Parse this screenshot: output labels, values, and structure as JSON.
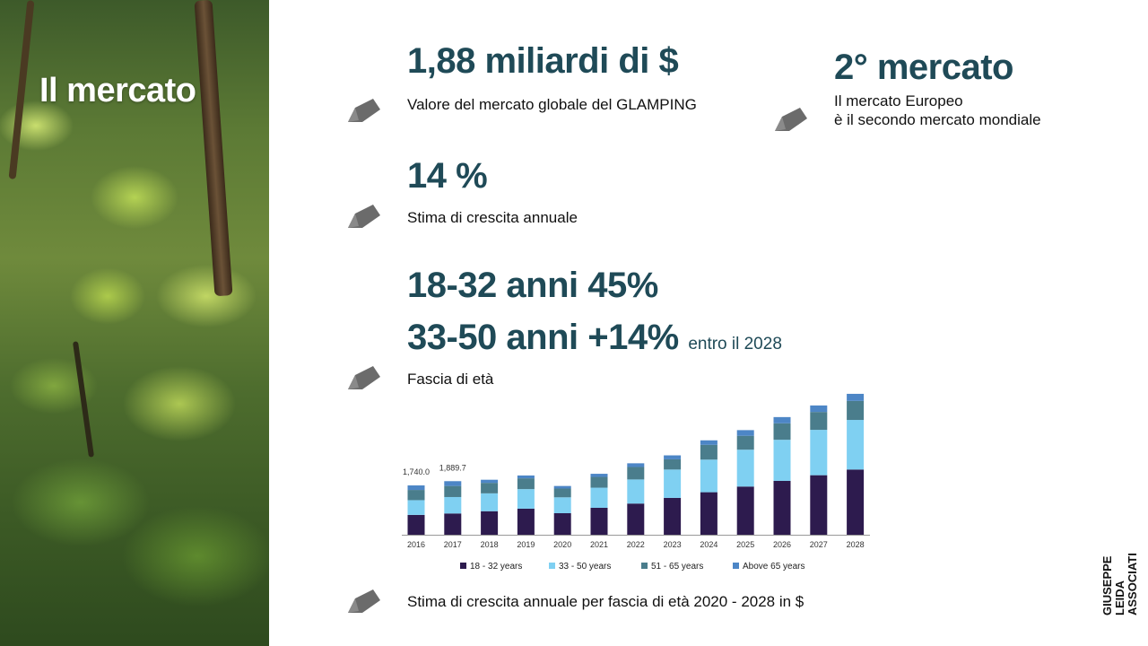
{
  "slide": {
    "title": "Il mercato",
    "brand_line1": "GIUSEPPE LEIDA",
    "brand_line2": "ASSOCIATI"
  },
  "stats": [
    {
      "headline": "1,88 miliardi di $",
      "caption": "Valore del mercato globale del GLAMPING"
    },
    {
      "headline": "2° mercato",
      "caption_line1": "Il mercato Europeo",
      "caption_line2": "è il secondo mercato mondiale"
    },
    {
      "headline": "14 %",
      "caption": "Stima di crescita annuale"
    },
    {
      "headline_line1": "18-32 anni 45%",
      "headline_line2": "33-50 anni +14%",
      "note": "entro il 2028",
      "caption": "Fascia di età"
    },
    {
      "caption": "Stima di crescita annuale per fascia di età 2020 - 2028 in $"
    }
  ],
  "icons": {
    "bullet": "pencil-icon"
  },
  "chart_data": {
    "type": "bar",
    "stacked": true,
    "categories": [
      "2016",
      "2017",
      "2018",
      "2019",
      "2020",
      "2021",
      "2022",
      "2023",
      "2024",
      "2025",
      "2026",
      "2027",
      "2028"
    ],
    "series": [
      {
        "name": "18 - 32 years",
        "color": "#2d1b4e",
        "values": [
          700,
          750,
          830,
          920,
          760,
          950,
          1100,
          1300,
          1500,
          1700,
          1900,
          2100,
          2300
        ]
      },
      {
        "name": "33 - 50 years",
        "color": "#7fd0f2",
        "values": [
          520,
          580,
          630,
          690,
          560,
          710,
          850,
          1000,
          1150,
          1300,
          1450,
          1600,
          1750
        ]
      },
      {
        "name": "51 - 65 years",
        "color": "#4a7d8c",
        "values": [
          360,
          390,
          370,
          380,
          310,
          380,
          440,
          360,
          520,
          490,
          580,
          630,
          670
        ]
      },
      {
        "name": "Above 65 years",
        "color": "#4d86c6",
        "values": [
          160,
          170,
          110,
          100,
          90,
          110,
          130,
          140,
          160,
          200,
          220,
          230,
          250
        ]
      }
    ],
    "data_labels": [
      {
        "category": "2016",
        "text": "1,740.0"
      },
      {
        "category": "2017",
        "text": "1,889.7"
      }
    ],
    "ylim": [
      0,
      5000
    ],
    "grid": false,
    "legend": "bottom"
  }
}
